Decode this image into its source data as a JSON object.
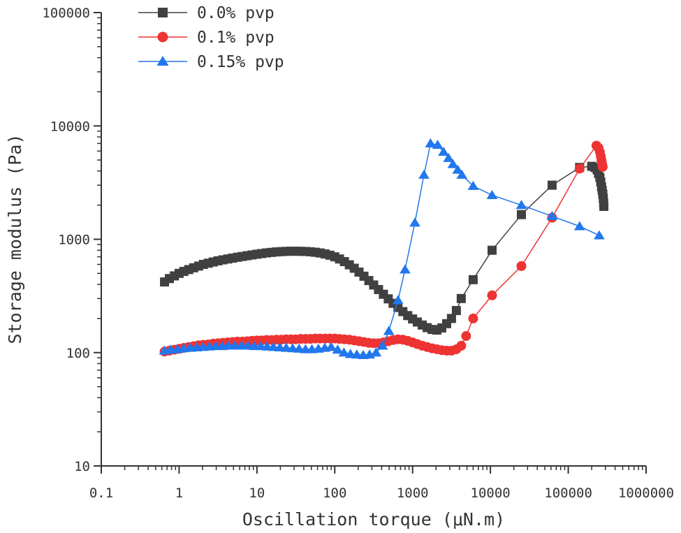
{
  "chart_data": {
    "type": "line",
    "title": "",
    "xlabel": "Oscillation torque (μN.m)",
    "ylabel": "Storage modulus (Pa)",
    "xscale": "log",
    "yscale": "log",
    "xlim": [
      0.1,
      1000000
    ],
    "ylim": [
      10,
      100000
    ],
    "xticks": [
      0.1,
      1,
      10,
      100,
      1000,
      10000,
      100000,
      1000000
    ],
    "xtick_labels": [
      "0.1",
      "1",
      "10",
      "100",
      "1000",
      "10000",
      "100000",
      "1000000"
    ],
    "yticks": [
      10,
      100,
      1000,
      10000,
      100000
    ],
    "ytick_labels": [
      "10",
      "100",
      "1000",
      "10000",
      "100000"
    ],
    "grid": false,
    "legend_position": "top-left",
    "series": [
      {
        "name": "0.0% pvp",
        "color": "#404040",
        "marker": "square",
        "x": [
          0.65,
          0.75,
          0.87,
          1.0,
          1.15,
          1.33,
          1.54,
          1.78,
          2.05,
          2.37,
          2.74,
          3.16,
          3.65,
          4.22,
          4.87,
          5.62,
          6.49,
          7.5,
          8.66,
          10,
          11.5,
          13.3,
          15.4,
          17.8,
          20.5,
          23.7,
          27.4,
          31.6,
          36.5,
          42.2,
          48.7,
          56.2,
          64.9,
          75,
          86.6,
          100,
          115,
          133,
          154,
          178,
          205,
          237,
          274,
          316,
          365,
          422,
          487,
          562,
          649,
          750,
          866,
          1000,
          1150,
          1330,
          1540,
          1780,
          2050,
          2370,
          2740,
          3160,
          3650,
          4220,
          6000,
          10500,
          25000,
          62000,
          140000,
          200000,
          220000,
          235000,
          245000,
          255000,
          262000,
          268000,
          273000,
          278000,
          282000,
          285000,
          287000
        ],
        "y": [
          420,
          450,
          475,
          500,
          520,
          540,
          560,
          580,
          600,
          615,
          630,
          645,
          658,
          670,
          682,
          694,
          705,
          716,
          727,
          738,
          748,
          758,
          766,
          773,
          778,
          782,
          784,
          784,
          783,
          780,
          775,
          768,
          757,
          742,
          723,
          700,
          670,
          635,
          595,
          555,
          513,
          472,
          432,
          395,
          360,
          327,
          298,
          272,
          250,
          230,
          212,
          198,
          186,
          175,
          166,
          160,
          158,
          165,
          180,
          200,
          235,
          300,
          440,
          800,
          1650,
          3000,
          4300,
          4400,
          4300,
          4100,
          3800,
          3500,
          3200,
          2900,
          2700,
          2500,
          2300,
          2100,
          1950
        ]
      },
      {
        "name": "0.1% pvp",
        "color": "#ee3333",
        "marker": "circle",
        "x": [
          0.65,
          0.75,
          0.87,
          1.0,
          1.15,
          1.33,
          1.54,
          1.78,
          2.05,
          2.37,
          2.74,
          3.16,
          3.65,
          4.22,
          4.87,
          5.62,
          6.49,
          7.5,
          8.66,
          10,
          11.5,
          13.3,
          15.4,
          17.8,
          20.5,
          23.7,
          27.4,
          31.6,
          36.5,
          42.2,
          48.7,
          56.2,
          64.9,
          75,
          86.6,
          100,
          115,
          133,
          154,
          178,
          205,
          237,
          274,
          316,
          365,
          422,
          487,
          562,
          649,
          750,
          866,
          1000,
          1150,
          1330,
          1540,
          1780,
          2050,
          2370,
          2740,
          3160,
          3650,
          4220,
          4870,
          6000,
          10500,
          25000,
          62000,
          140000,
          230000,
          245000,
          255000,
          262000,
          267000,
          271000,
          274000,
          276000,
          277000
        ],
        "y": [
          102,
          104,
          106,
          108,
          110,
          112,
          114,
          116,
          117,
          118,
          120,
          121,
          122,
          123,
          124,
          125,
          125,
          126,
          127,
          128,
          128,
          129,
          129,
          130,
          130,
          131,
          131,
          131,
          132,
          132,
          132,
          133,
          133,
          133,
          133,
          133,
          132,
          131,
          130,
          128,
          126,
          124,
          122,
          121,
          121,
          123,
          126,
          129,
          131,
          130,
          127,
          123,
          119,
          115,
          112,
          109,
          107,
          105,
          104,
          104,
          107,
          115,
          140,
          200,
          320,
          580,
          1550,
          4200,
          6700,
          6400,
          5900,
          5400,
          5000,
          4700,
          4500,
          4400,
          4350
        ]
      },
      {
        "name": "0.15% pvp",
        "color": "#2277ee",
        "marker": "triangle",
        "x": [
          0.65,
          0.78,
          0.95,
          1.15,
          1.39,
          1.68,
          2.03,
          2.45,
          2.96,
          3.58,
          4.33,
          5.23,
          6.32,
          7.64,
          9.24,
          11.2,
          13.5,
          16.3,
          19.7,
          23.8,
          28.8,
          34.8,
          42.1,
          50.9,
          61.5,
          74.4,
          89.9,
          109,
          131,
          159,
          192,
          232,
          280,
          339,
          410,
          495,
          650,
          800,
          1070,
          1400,
          1700,
          2100,
          2500,
          2900,
          3300,
          3800,
          4300,
          6000,
          10500,
          25000,
          62000,
          140000,
          250000
        ],
        "y": [
          104,
          106,
          107,
          109,
          110,
          111,
          112,
          113,
          114,
          114,
          115,
          115,
          115,
          115,
          114,
          114,
          113,
          112,
          111,
          110,
          109,
          108,
          107,
          107,
          108,
          110,
          112,
          106,
          100,
          97,
          96,
          95,
          96,
          100,
          115,
          155,
          290,
          540,
          1400,
          3700,
          7000,
          6800,
          5900,
          5200,
          4600,
          4100,
          3700,
          2950,
          2450,
          2000,
          1600,
          1300,
          1080
        ]
      }
    ]
  }
}
